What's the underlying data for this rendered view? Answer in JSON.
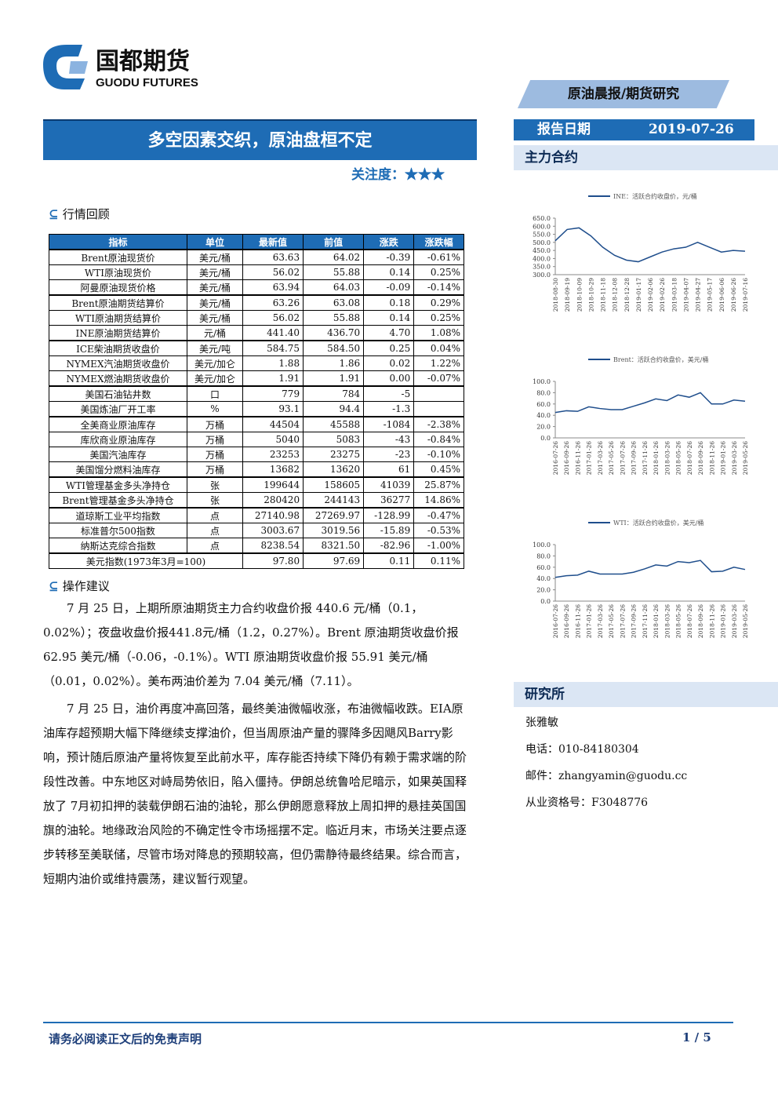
{
  "header": {
    "logo_cn": "国都期货",
    "logo_en": "GUODU FUTURES",
    "tag": "原油晨报/期货研究"
  },
  "title": "多空因素交织，原油盘桓不定",
  "rating": {
    "label": "关注度：",
    "stars": "★★★"
  },
  "report_date": {
    "label": "报告日期",
    "value": "2019-07-26"
  },
  "sidebar": {
    "contracts_title": "主力合约",
    "research_title": "研究所",
    "analyst": "张雅敏",
    "phone": "电话：010-84180304",
    "email": "邮件：zhangyamin@guodu.cc",
    "license": "从业资格号：F3048776"
  },
  "sections": {
    "review": "行情回顾",
    "advice": "操作建议"
  },
  "table": {
    "header": [
      "指标",
      "单位",
      "最新值",
      "前值",
      "涨跌",
      "涨跌幅"
    ],
    "groups": [
      [
        [
          "Brent原油现货价",
          "美元/桶",
          "63.63",
          "64.02",
          "-0.39",
          "-0.61%"
        ],
        [
          "WTI原油现货价",
          "美元/桶",
          "56.02",
          "55.88",
          "0.14",
          "0.25%"
        ],
        [
          "阿曼原油现货价格",
          "美元/桶",
          "63.94",
          "64.03",
          "-0.09",
          "-0.14%"
        ]
      ],
      [
        [
          "Brent原油期货结算价",
          "美元/桶",
          "63.26",
          "63.08",
          "0.18",
          "0.29%"
        ],
        [
          "WTI原油期货结算价",
          "美元/桶",
          "56.02",
          "55.88",
          "0.14",
          "0.25%"
        ],
        [
          "INE原油期货结算价",
          "元/桶",
          "441.40",
          "436.70",
          "4.70",
          "1.08%"
        ]
      ],
      [
        [
          "ICE柴油期货收盘价",
          "美元/吨",
          "584.75",
          "584.50",
          "0.25",
          "0.04%"
        ],
        [
          "NYMEX汽油期货收盘价",
          "美元/加仑",
          "1.88",
          "1.86",
          "0.02",
          "1.22%"
        ],
        [
          "NYMEX燃油期货收盘价",
          "美元/加仑",
          "1.91",
          "1.91",
          "0.00",
          "-0.07%"
        ]
      ],
      [
        [
          "美国石油钻井数",
          "口",
          "779",
          "784",
          "-5",
          null
        ],
        [
          "美国炼油厂开工率",
          "%",
          "93.1",
          "94.4",
          "-1.3",
          null
        ]
      ],
      [
        [
          "全美商业原油库存",
          "万桶",
          "44504",
          "45588",
          "-1084",
          "-2.38%"
        ],
        [
          "库欣商业原油库存",
          "万桶",
          "5040",
          "5083",
          "-43",
          "-0.84%"
        ],
        [
          "美国汽油库存",
          "万桶",
          "23253",
          "23275",
          "-23",
          "-0.10%"
        ],
        [
          "美国馏分燃料油库存",
          "万桶",
          "13682",
          "13620",
          "61",
          "0.45%"
        ]
      ],
      [
        [
          "WTI管理基金多头净持仓",
          "张",
          "199644",
          "158605",
          "41039",
          "25.87%"
        ],
        [
          "Brent管理基金多头净持仓",
          "张",
          "280420",
          "244143",
          "36277",
          "14.86%"
        ]
      ],
      [
        [
          "道琼斯工业平均指数",
          "点",
          "27140.98",
          "27269.97",
          "-128.99",
          "-0.47%"
        ],
        [
          "标准普尔500指数",
          "点",
          "3003.67",
          "3019.56",
          "-15.89",
          "-0.53%"
        ],
        [
          "纳斯达克综合指数",
          "点",
          "8238.54",
          "8321.50",
          "-82.96",
          "-1.00%"
        ]
      ],
      [
        [
          "美元指数(1973年3月=100)",
          "97.80",
          "97.69",
          "0.11",
          "0.11%"
        ]
      ]
    ]
  },
  "paragraphs": [
    "7 月 25 日，上期所原油期货主力合约收盘价报 440.6 元/桶（0.1，0.02%）；夜盘收盘价报441.8元/桶（1.2，0.27%）。Brent 原油期货收盘价报 62.95 美元/桶（-0.06，-0.1%）。WTI 原油期货收盘价报 55.91 美元/桶（0.01，0.02%）。美布两油价差为 7.04 美元/桶（7.11）。",
    "7 月 25 日，油价再度冲高回落，最终美油微幅收涨，布油微幅收跌。EIA原油库存超预期大幅下降继续支撑油价，但当周原油产量的骤降多因飓风Barry影响，预计随后原油产量将恢复至此前水平，库存能否持续下降仍有赖于需求端的阶段性改善。中东地区对峙局势依旧，陷入僵持。伊朗总统鲁哈尼暗示，如果英国释放了 7月初扣押的装载伊朗石油的油轮，那么伊朗愿意释放上周扣押的悬挂英国国旗的油轮。地缘政治风险的不确定性令市场摇摆不定。临近月末，市场关注要点逐步转移至美联储，尽管市场对降息的预期较高，但仍需静待最终结果。综合而言，短期内油价或维持震荡，建议暂行观望。"
  ],
  "footer": {
    "disclaimer": "请务必阅读正文后的免责声明",
    "page": "1 / 5"
  },
  "charts": [
    {
      "type": "line",
      "categories": [
        "2018-08-30",
        "2018-09-19",
        "2018-10-09",
        "2018-10-29",
        "2018-11-18",
        "2018-12-08",
        "2018-12-28",
        "2019-01-17",
        "2019-02-06",
        "2019-02-26",
        "2019-03-18",
        "2019-04-07",
        "2019-04-27",
        "2019-05-17",
        "2019-06-06",
        "2019-06-26",
        "2019-07-16"
      ],
      "series": [
        {
          "name": "INE：活跃合约收盘价，元/桶",
          "color": "#1f4e8c",
          "values": [
            510,
            580,
            590,
            540,
            470,
            420,
            390,
            380,
            410,
            440,
            460,
            470,
            500,
            470,
            440,
            450,
            445
          ]
        }
      ],
      "ylim": [
        300,
        650
      ],
      "yticks": [
        {
          "value": 300,
          "label": "300.0"
        },
        {
          "value": 350,
          "label": "350.0"
        },
        {
          "value": 400,
          "label": "400.0"
        },
        {
          "value": 450,
          "label": "450.0"
        },
        {
          "value": 500,
          "label": "500.0"
        },
        {
          "value": 550,
          "label": "550.0"
        },
        {
          "value": 600,
          "label": "600.0"
        },
        {
          "value": 650,
          "label": "650.0"
        }
      ]
    },
    {
      "type": "line",
      "categories": [
        "2016-07-26",
        "2016-09-26",
        "2016-11-26",
        "2017-01-26",
        "2017-03-26",
        "2017-05-26",
        "2017-07-26",
        "2017-09-26",
        "2017-11-26",
        "2018-01-26",
        "2018-03-26",
        "2018-05-26",
        "2018-07-26",
        "2018-09-26",
        "2018-11-26",
        "2019-01-26",
        "2019-03-26",
        "2019-05-26"
      ],
      "series": [
        {
          "name": "Brent：活跃合约收盘价，美元/桶",
          "color": "#1f4e8c",
          "values": [
            45,
            48,
            47,
            55,
            52,
            50,
            50,
            56,
            62,
            69,
            66,
            76,
            72,
            80,
            60,
            60,
            67,
            65
          ]
        }
      ],
      "ylim": [
        0,
        100
      ],
      "yticks": [
        {
          "value": 0,
          "label": "0.0"
        },
        {
          "value": 20,
          "label": "20.0"
        },
        {
          "value": 40,
          "label": "40.0"
        },
        {
          "value": 60,
          "label": "60.0"
        },
        {
          "value": 80,
          "label": "80.0"
        },
        {
          "value": 100,
          "label": "100.0"
        }
      ]
    },
    {
      "type": "line",
      "categories": [
        "2016-07-26",
        "2016-09-26",
        "2016-11-26",
        "2017-01-26",
        "2017-03-26",
        "2017-05-26",
        "2017-07-26",
        "2017-09-26",
        "2017-11-26",
        "2018-01-26",
        "2018-03-26",
        "2018-05-26",
        "2018-07-26",
        "2018-09-26",
        "2018-11-26",
        "2019-01-26",
        "2019-03-26",
        "2019-05-26"
      ],
      "series": [
        {
          "name": "WTI：活跃合约收盘价，美元/桶",
          "color": "#1f4e8c",
          "values": [
            42,
            45,
            46,
            53,
            48,
            48,
            48,
            51,
            57,
            64,
            62,
            70,
            68,
            72,
            52,
            53,
            60,
            56
          ]
        }
      ],
      "ylim": [
        0,
        100
      ],
      "yticks": [
        {
          "value": 0,
          "label": "0.0"
        },
        {
          "value": 20,
          "label": "20.0"
        },
        {
          "value": 40,
          "label": "40.0"
        },
        {
          "value": 60,
          "label": "60.0"
        },
        {
          "value": 80,
          "label": "80.0"
        },
        {
          "value": 100,
          "label": "100.0"
        }
      ]
    }
  ]
}
